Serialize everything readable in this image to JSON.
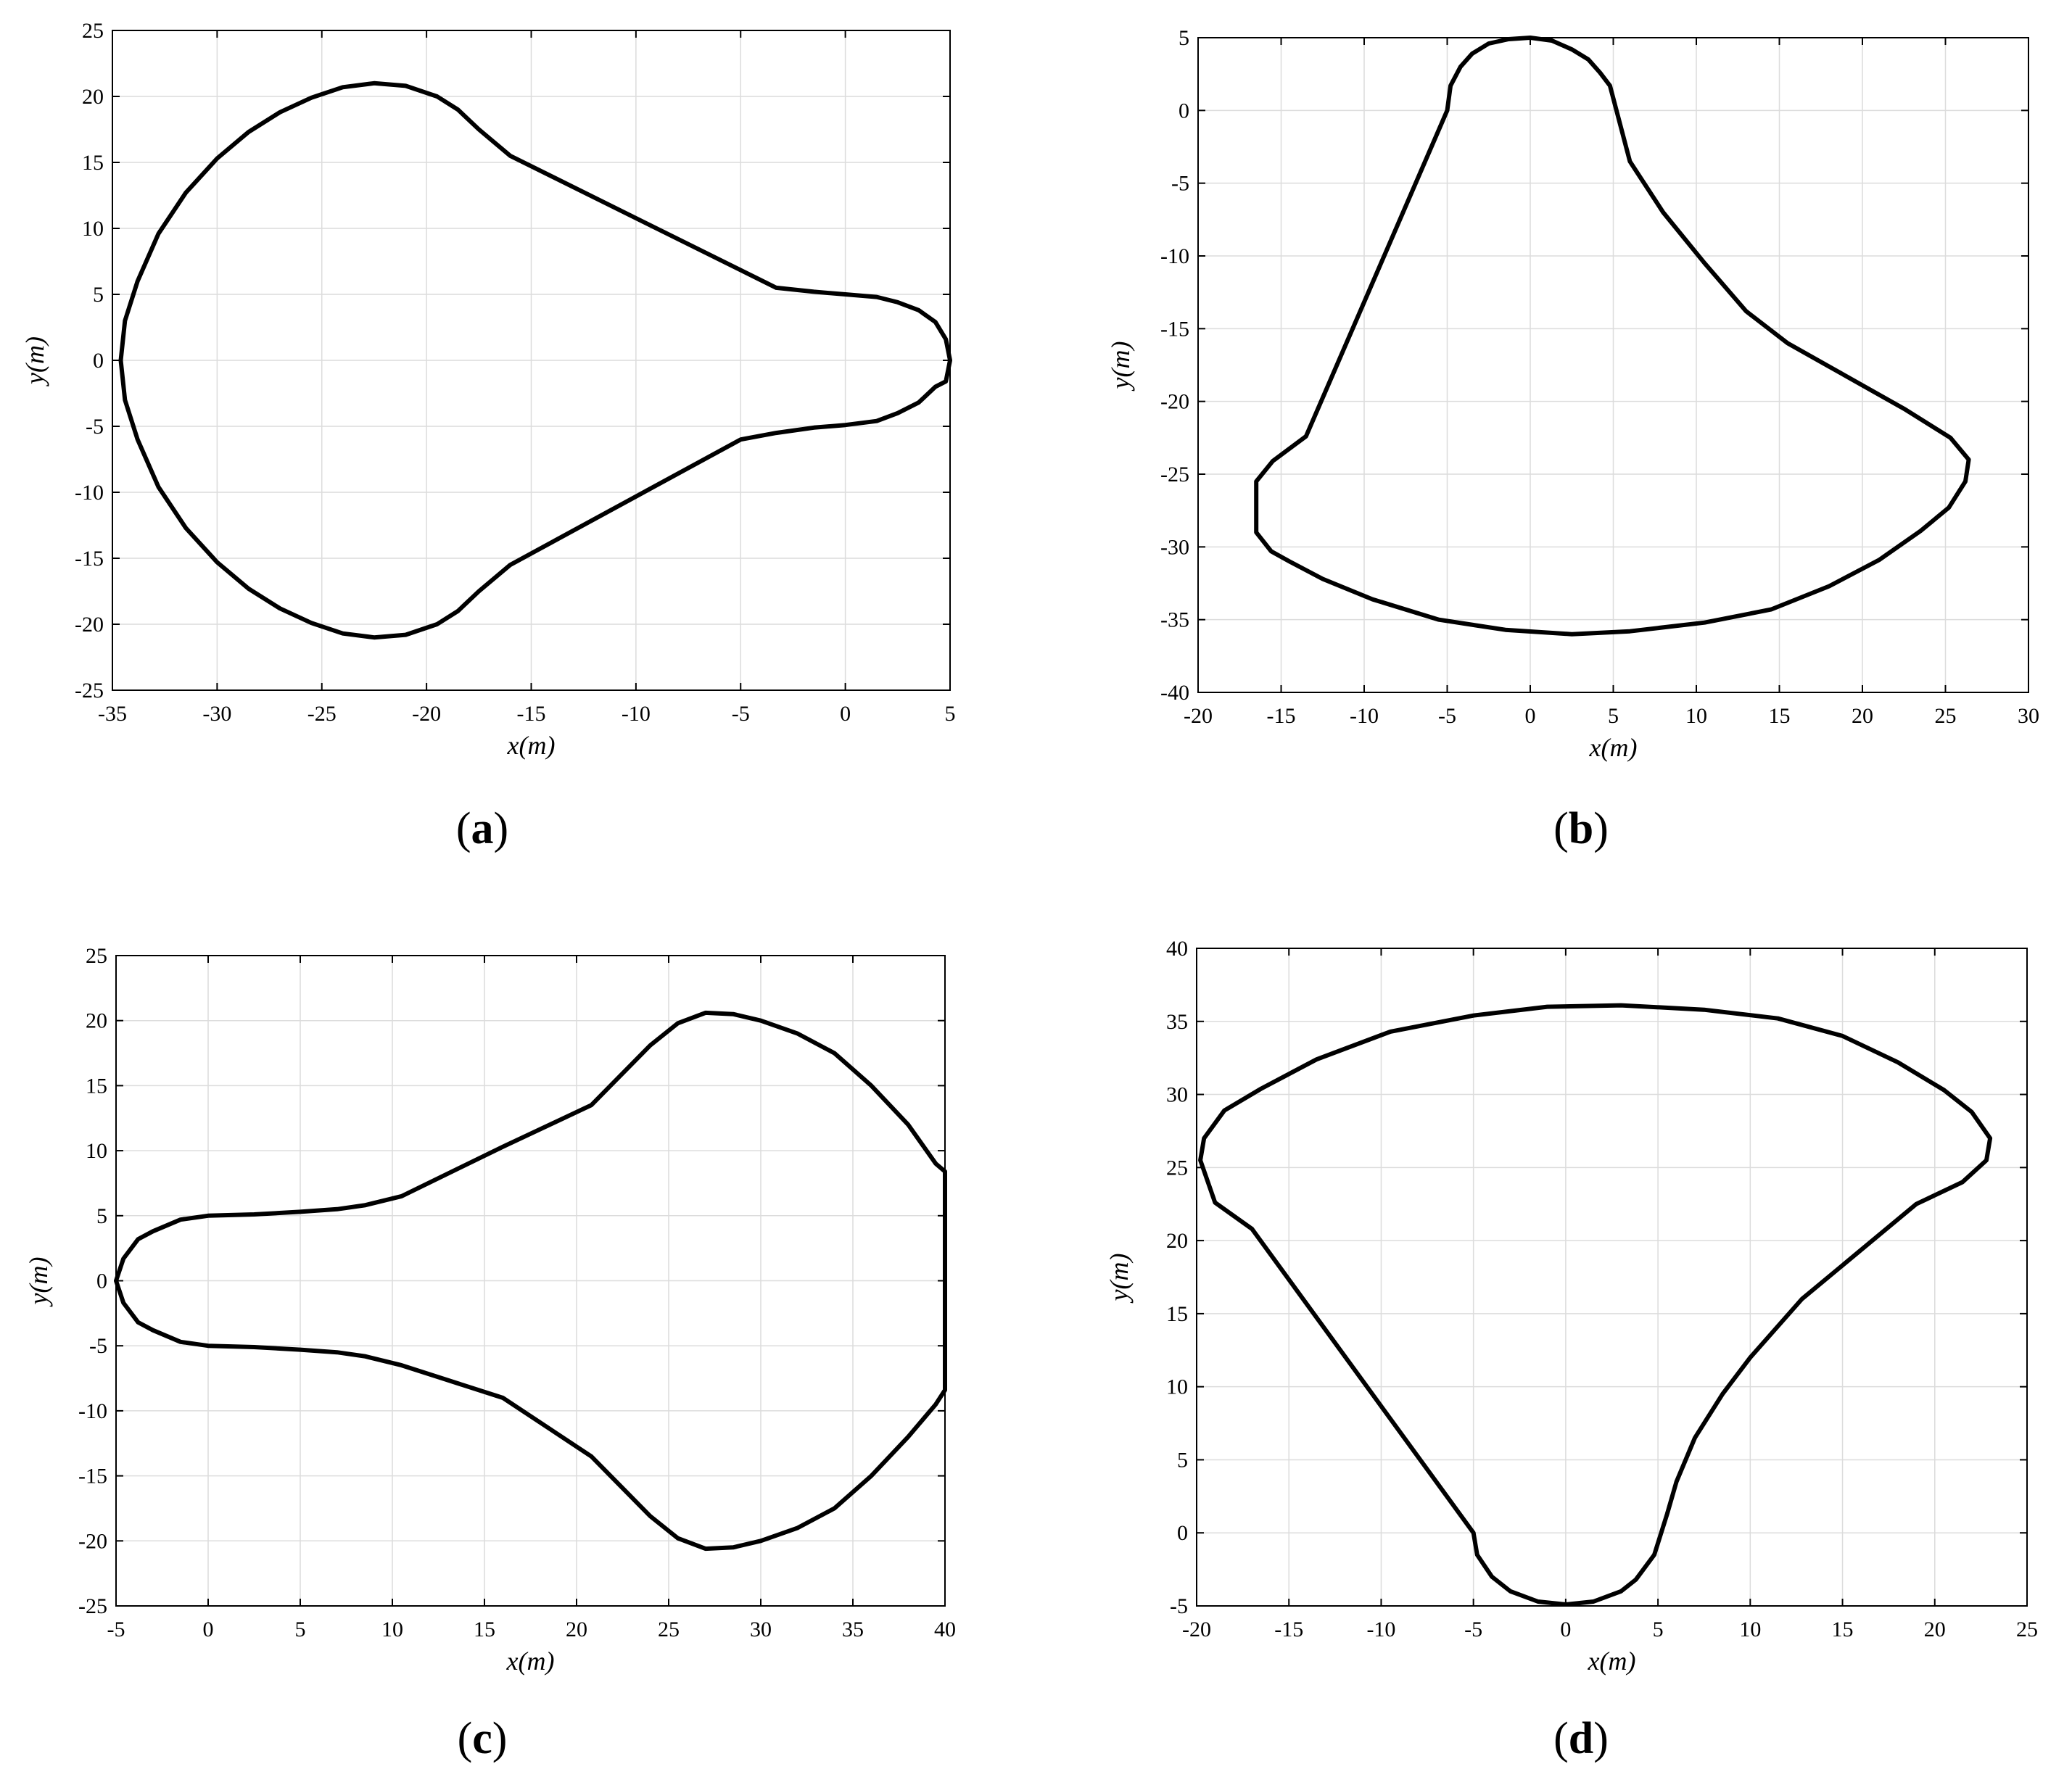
{
  "chart_data": [
    {
      "panel": "(a)",
      "panel_letter": "a",
      "type": "line",
      "title": "",
      "xlabel": "x(m)",
      "ylabel": "y(m)",
      "xlim": [
        -35,
        5
      ],
      "ylim": [
        -25,
        25
      ],
      "xticks": [
        -35,
        -30,
        -25,
        -20,
        -15,
        -10,
        -5,
        0,
        5
      ],
      "yticks": [
        -25,
        -20,
        -15,
        -10,
        -5,
        0,
        5,
        10,
        15,
        20,
        25
      ],
      "grid": true,
      "line_color": "#000000",
      "series": [
        {
          "x": [
            5.0,
            4.8,
            4.3,
            3.5,
            2.5,
            1.5,
            0.0,
            -1.5,
            -3.3,
            -16.0,
            -17.5,
            -18.5,
            -19.5,
            -21.0,
            -22.5,
            -24.0,
            -25.5,
            -27.0,
            -28.5,
            -30.0,
            -31.5,
            -32.8,
            -33.8,
            -34.4,
            -34.6,
            -34.4,
            -33.8,
            -32.8,
            -31.5,
            -30.0,
            -28.5,
            -27.0,
            -25.5,
            -24.0,
            -22.5,
            -21.0,
            -19.5,
            -18.5,
            -17.5,
            -16.0,
            -5.0,
            -3.3,
            -1.5,
            0.0,
            1.5,
            2.5,
            3.5,
            4.3,
            4.8,
            5.0
          ],
          "y": [
            0.0,
            1.6,
            2.9,
            3.8,
            4.4,
            4.8,
            5.0,
            5.2,
            5.5,
            15.5,
            17.5,
            19.0,
            20.0,
            20.8,
            21.0,
            20.7,
            19.9,
            18.8,
            17.3,
            15.3,
            12.7,
            9.6,
            6.0,
            3.0,
            0.0,
            -3.0,
            -6.0,
            -9.6,
            -12.7,
            -15.3,
            -17.3,
            -18.8,
            -19.9,
            -20.7,
            -21.0,
            -20.8,
            -20.0,
            -19.0,
            -17.5,
            -15.5,
            -6.0,
            -5.5,
            -5.1,
            -4.9,
            -4.6,
            -4.0,
            -3.2,
            -2.0,
            -1.6,
            0.0
          ]
        }
      ]
    },
    {
      "panel": "(b)",
      "panel_letter": "b",
      "type": "line",
      "title": "",
      "xlabel": "x(m)",
      "ylabel": "y(m)",
      "xlim": [
        -20,
        30
      ],
      "ylim": [
        -40,
        5
      ],
      "xticks": [
        -20,
        -15,
        -10,
        -5,
        0,
        5,
        10,
        15,
        20,
        25,
        30
      ],
      "yticks": [
        -40,
        -35,
        -30,
        -25,
        -20,
        -15,
        -10,
        -5,
        0,
        5
      ],
      "grid": true,
      "line_color": "#000000",
      "series": [
        {
          "x": [
            -5.0,
            -4.8,
            -4.2,
            -3.5,
            -2.5,
            -1.3,
            0.0,
            1.3,
            2.5,
            3.5,
            4.2,
            4.8,
            6.0,
            8.0,
            10.5,
            13.0,
            15.5,
            22.5,
            25.3,
            26.4,
            26.2,
            25.2,
            23.5,
            21.0,
            18.0,
            14.5,
            10.5,
            6.0,
            2.5,
            -1.5,
            -5.5,
            -9.5,
            -12.5,
            -14.5,
            -15.6,
            -16.5,
            -16.5,
            -15.5,
            -13.5,
            -5.0
          ],
          "y": [
            0.0,
            1.7,
            3.0,
            3.9,
            4.6,
            4.9,
            5.0,
            4.8,
            4.2,
            3.5,
            2.6,
            1.7,
            -3.5,
            -7.0,
            -10.5,
            -13.8,
            -16.0,
            -20.5,
            -22.5,
            -24.0,
            -25.5,
            -27.3,
            -28.9,
            -30.9,
            -32.7,
            -34.3,
            -35.2,
            -35.8,
            -36.0,
            -35.7,
            -35.0,
            -33.6,
            -32.2,
            -31.0,
            -30.3,
            -29.0,
            -25.5,
            -24.1,
            -22.4,
            0.0
          ]
        }
      ]
    },
    {
      "panel": "(c)",
      "panel_letter": "c",
      "type": "line",
      "title": "",
      "xlabel": "x(m)",
      "ylabel": "y(m)",
      "xlim": [
        -5,
        40
      ],
      "ylim": [
        -25,
        25
      ],
      "xticks": [
        -5,
        0,
        5,
        10,
        15,
        20,
        25,
        30,
        35,
        40
      ],
      "yticks": [
        -25,
        -20,
        -15,
        -10,
        -5,
        0,
        5,
        10,
        15,
        20,
        25
      ],
      "grid": true,
      "line_color": "#000000",
      "series": [
        {
          "x": [
            -5.0,
            -4.6,
            -3.8,
            -3.0,
            -1.5,
            0.0,
            2.5,
            5.0,
            7.0,
            8.5,
            10.5,
            16.0,
            20.8,
            24.0,
            25.5,
            27.0,
            28.5,
            30.0,
            32.0,
            34.0,
            36.0,
            38.0,
            39.5,
            40.0,
            40.0,
            39.5,
            38.0,
            36.0,
            34.0,
            32.0,
            30.0,
            28.5,
            27.0,
            25.5,
            24.0,
            20.8,
            16.0,
            10.5,
            8.5,
            7.0,
            5.0,
            2.5,
            0.0,
            -1.5,
            -3.0,
            -3.8,
            -4.6,
            -5.0
          ],
          "y": [
            0.0,
            1.7,
            3.2,
            3.8,
            4.7,
            5.0,
            5.1,
            5.3,
            5.5,
            5.8,
            6.5,
            10.3,
            13.5,
            18.1,
            19.8,
            20.6,
            20.5,
            20.0,
            19.0,
            17.5,
            15.0,
            12.0,
            9.0,
            8.4,
            -8.4,
            -9.5,
            -12.0,
            -15.0,
            -17.5,
            -19.0,
            -20.0,
            -20.5,
            -20.6,
            -19.8,
            -18.1,
            -13.5,
            -9.0,
            -6.5,
            -5.8,
            -5.5,
            -5.3,
            -5.1,
            -5.0,
            -4.7,
            -3.8,
            -3.2,
            -1.7,
            0.0
          ]
        }
      ]
    },
    {
      "panel": "(d)",
      "panel_letter": "d",
      "type": "line",
      "title": "",
      "xlabel": "x(m)",
      "ylabel": "y(m)",
      "xlim": [
        -20,
        25
      ],
      "ylim": [
        -5,
        40
      ],
      "xticks": [
        -20,
        -15,
        -10,
        -5,
        0,
        5,
        10,
        15,
        20,
        25
      ],
      "yticks": [
        -5,
        0,
        5,
        10,
        15,
        20,
        25,
        30,
        35,
        40
      ],
      "grid": true,
      "line_color": "#000000",
      "series": [
        {
          "x": [
            -5.0,
            -4.8,
            -4.0,
            -3.0,
            -1.5,
            0.0,
            1.5,
            3.0,
            3.8,
            4.8,
            5.5,
            6.0,
            7.0,
            8.5,
            10.0,
            12.8,
            19.0,
            21.5,
            22.8,
            23.0,
            22.0,
            20.5,
            18.0,
            15.0,
            11.5,
            7.5,
            3.0,
            -1.0,
            -5.0,
            -9.5,
            -13.5,
            -16.5,
            -18.5,
            -19.6,
            -19.8,
            -19.0,
            -17.0,
            -5.0
          ],
          "y": [
            0.0,
            -1.5,
            -3.0,
            -4.0,
            -4.7,
            -4.9,
            -4.7,
            -4.0,
            -3.2,
            -1.5,
            1.3,
            3.5,
            6.5,
            9.5,
            12.0,
            16.0,
            22.5,
            24.0,
            25.5,
            27.0,
            28.8,
            30.3,
            32.2,
            34.0,
            35.2,
            35.8,
            36.1,
            36.0,
            35.4,
            34.3,
            32.4,
            30.4,
            28.9,
            27.0,
            25.5,
            22.6,
            20.8,
            0.0
          ]
        }
      ]
    }
  ]
}
